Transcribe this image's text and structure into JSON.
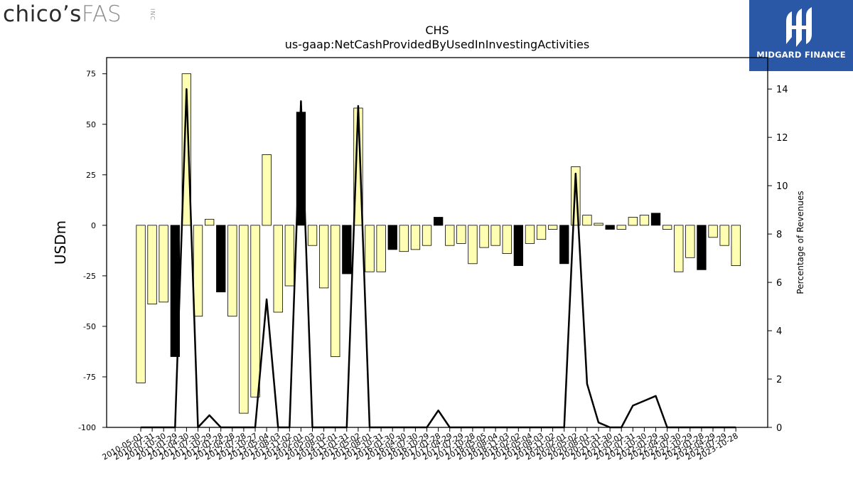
{
  "logos": {
    "left": {
      "primary": "chico’s",
      "secondary": "FAS",
      "suffix": "INC"
    },
    "right": {
      "brand": "MIDGARD FINANCE",
      "icon": "midgard-mark-icon",
      "color": "#2a57a6"
    }
  },
  "chart_data": {
    "type": "bar",
    "title": "CHS",
    "subtitle": "us-gaap:NetCashProvidedByUsedInInvestingActivities",
    "ylabel": "USDm",
    "y2label": "Percentage of Revenues",
    "ylim": [
      -100,
      83
    ],
    "y2lim": [
      0,
      15.3
    ],
    "yticks": [
      -100,
      -75,
      -50,
      -25,
      0,
      25,
      50,
      75
    ],
    "y2ticks": [
      0,
      2,
      4,
      6,
      8,
      10,
      12,
      14
    ],
    "categories": [
      "2010-05-01",
      "2010-07-31",
      "2010-10-30",
      "2011-01-29",
      "2011-04-30",
      "2011-07-30",
      "2011-10-29",
      "2012-01-28",
      "2012-04-28",
      "2012-07-28",
      "2012-10-27",
      "2013-05-04",
      "2013-08-03",
      "2013-11-02",
      "2014-02-01",
      "2014-05-03",
      "2014-08-02",
      "2014-11-01",
      "2015-01-31",
      "2015-05-02",
      "2015-08-01",
      "2015-10-31",
      "2016-01-30",
      "2016-04-30",
      "2016-07-30",
      "2016-10-29",
      "2017-01-28",
      "2017-04-29",
      "2017-07-29",
      "2017-10-28",
      "2018-05-05",
      "2018-08-04",
      "2018-11-03",
      "2019-02-02",
      "2019-05-04",
      "2019-08-03",
      "2019-11-02",
      "2020-02-01",
      "2020-05-02",
      "2020-08-01",
      "2020-10-31",
      "2021-01-30",
      "2021-05-01",
      "2021-07-31",
      "2021-10-30",
      "2022-01-29",
      "2022-04-30",
      "2022-07-30",
      "2022-10-29",
      "2023-01-28",
      "2023-04-29",
      "2023-07-29",
      "2023-10-28"
    ],
    "series": [
      {
        "values": [
          -78,
          -39,
          -38,
          -65,
          75,
          -45,
          3,
          -33,
          -45,
          -93,
          -85,
          35,
          -43,
          -30,
          56,
          -10,
          -31,
          -65,
          -24,
          58,
          -23,
          -23,
          -12,
          -13,
          -12,
          -10,
          4,
          -10,
          -9,
          -19,
          -11,
          -10,
          -14,
          -20,
          -9,
          -7,
          -2,
          -19,
          29,
          5,
          1,
          -2,
          -2,
          4,
          5,
          6,
          -2,
          -23,
          -16,
          -22,
          -6,
          -10,
          -20
        ],
        "negative_change": [
          false,
          false,
          false,
          true,
          false,
          false,
          false,
          true,
          false,
          false,
          false,
          false,
          false,
          false,
          true,
          false,
          false,
          false,
          true,
          false,
          false,
          false,
          true,
          false,
          false,
          false,
          true,
          false,
          false,
          false,
          false,
          false,
          false,
          true,
          false,
          false,
          false,
          true,
          false,
          false,
          false,
          true,
          false,
          false,
          false,
          true,
          false,
          false,
          false,
          true,
          false,
          false,
          false
        ]
      },
      {
        "axis": "right",
        "type": "line",
        "values": [
          0,
          0,
          0,
          0,
          14.0,
          0,
          0.5,
          0,
          0,
          0,
          0,
          5.3,
          0,
          0,
          13.5,
          0,
          0,
          0,
          0,
          13.3,
          0,
          0,
          0,
          0,
          0,
          0,
          0.7,
          0,
          0,
          0,
          0,
          0,
          0,
          0,
          0,
          0,
          0,
          0,
          10.5,
          1.8,
          0.2,
          0,
          0,
          0.9,
          1.1,
          1.3,
          0,
          0,
          0,
          0,
          0,
          0,
          0
        ]
      }
    ],
    "colors": {
      "bar": "#ffffb3",
      "bar_negative_change": "#000000",
      "line": "#000000"
    },
    "grid": false
  }
}
